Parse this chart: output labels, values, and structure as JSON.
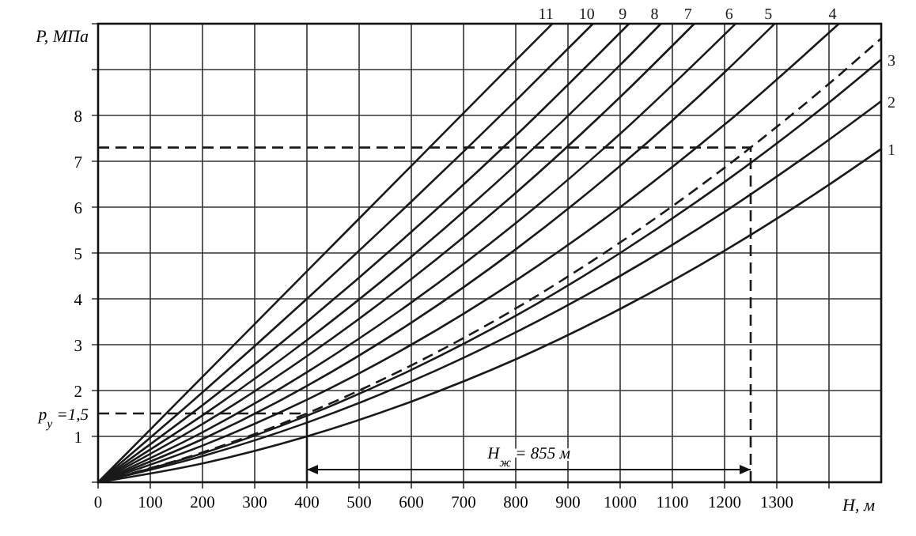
{
  "chart_data": {
    "type": "line",
    "xlabel": "H, м",
    "ylabel": "P, МПа",
    "xlim": [
      0,
      1500
    ],
    "ylim": [
      0,
      10
    ],
    "xticks": [
      0,
      100,
      200,
      300,
      400,
      500,
      600,
      700,
      800,
      900,
      1000,
      1100,
      1200,
      1300,
      {
        "value": 1400,
        "label": null
      }
    ],
    "yticks": [
      {
        "value": 0,
        "label": null
      },
      1,
      2,
      3,
      4,
      5,
      6,
      7,
      8,
      {
        "value": 9,
        "label": null
      },
      {
        "value": 10,
        "label": null
      }
    ],
    "grid": true,
    "marker": "none",
    "annotations": [
      {
        "text": "p$_{у}$ =1,5",
        "x": 0,
        "y": 1.5
      },
      "H$_{ж}$ = 855 м"
    ],
    "series": [
      {
        "name": "1",
        "color": "#1a1a1a",
        "x": [
          0,
          200,
          400,
          600,
          800,
          1000,
          1200,
          1400,
          1500
        ],
        "values": [
          0,
          0.41,
          1.0,
          1.76,
          2.68,
          3.78,
          5.05,
          6.49,
          7.27
        ]
      },
      {
        "name": "2",
        "color": "#1a1a1a",
        "x": [
          0,
          200,
          400,
          600,
          800,
          1000,
          1200,
          1400,
          1500
        ],
        "values": [
          0,
          0.57,
          1.3,
          2.2,
          3.27,
          4.5,
          5.9,
          7.47,
          8.31
        ]
      },
      {
        "name": "3",
        "color": "#1a1a1a",
        "x": [
          0,
          200,
          400,
          600,
          800,
          1000,
          1200,
          1400,
          1500
        ],
        "values": [
          0,
          0.63,
          1.45,
          2.45,
          3.63,
          5.0,
          6.55,
          8.28,
          9.22
        ]
      },
      {
        "color": "#1a1a1a",
        "line_style": "dashed",
        "x": [
          0,
          200,
          400,
          600,
          800,
          1000,
          1200,
          1250,
          1400,
          1500
        ],
        "values": [
          0,
          0.65,
          1.5,
          2.55,
          3.79,
          5.23,
          6.86,
          7.3,
          8.69,
          9.68
        ]
      },
      {
        "name": "4",
        "color": "#1a1a1a",
        "x": [
          0,
          200,
          400,
          600,
          800,
          1000,
          1200,
          1419
        ],
        "values": [
          0,
          0.8,
          1.8,
          3.0,
          4.4,
          6.0,
          7.8,
          10
        ]
      },
      {
        "name": "5",
        "color": "#1a1a1a",
        "x": [
          0,
          200,
          400,
          600,
          800,
          1000,
          1200,
          1296
        ],
        "values": [
          0,
          0.94,
          2.1,
          3.48,
          5.08,
          6.9,
          8.94,
          10
        ]
      },
      {
        "name": "6",
        "color": "#1a1a1a",
        "x": [
          0,
          200,
          400,
          600,
          800,
          1000,
          1221
        ],
        "values": [
          0,
          1.09,
          2.4,
          3.92,
          5.65,
          7.6,
          10
        ]
      },
      {
        "name": "7",
        "color": "#1a1a1a",
        "x": [
          0,
          200,
          400,
          600,
          800,
          1000,
          1142
        ],
        "values": [
          0,
          1.27,
          2.75,
          4.43,
          6.31,
          8.4,
          10
        ]
      },
      {
        "name": "8",
        "color": "#1a1a1a",
        "x": [
          0,
          200,
          400,
          600,
          800,
          1000,
          1078
        ],
        "values": [
          0,
          1.46,
          3.1,
          4.92,
          6.92,
          9.1,
          10
        ]
      },
      {
        "name": "9",
        "color": "#1a1a1a",
        "x": [
          0,
          200,
          400,
          600,
          800,
          1017
        ],
        "values": [
          0,
          1.68,
          3.5,
          5.46,
          7.56,
          10
        ]
      },
      {
        "name": "10",
        "color": "#1a1a1a",
        "x": [
          0,
          200,
          400,
          600,
          800,
          948
        ],
        "values": [
          0,
          1.96,
          4.0,
          6.12,
          8.32,
          10
        ]
      },
      {
        "name": "11",
        "color": "#1a1a1a",
        "x": [
          0,
          200,
          400,
          600,
          800,
          870
        ],
        "values": [
          0,
          2.3,
          4.6,
          6.9,
          9.2,
          10
        ]
      },
      {
        "color": "#1a1a1a",
        "line_style": "dashed",
        "x": [
          0,
          400
        ],
        "values": [
          1.5,
          1.5
        ]
      },
      {
        "color": "#1a1a1a",
        "line_style": "solid",
        "x": [
          400,
          400
        ],
        "values": [
          0,
          1.5
        ]
      },
      {
        "color": "#1a1a1a",
        "line_style": "dashed",
        "x": [
          0,
          1250
        ],
        "values": [
          7.3,
          7.3
        ]
      },
      {
        "color": "#1a1a1a",
        "line_style": "dashed",
        "x": [
          1250,
          1250
        ],
        "values": [
          0,
          7.3
        ]
      }
    ]
  }
}
